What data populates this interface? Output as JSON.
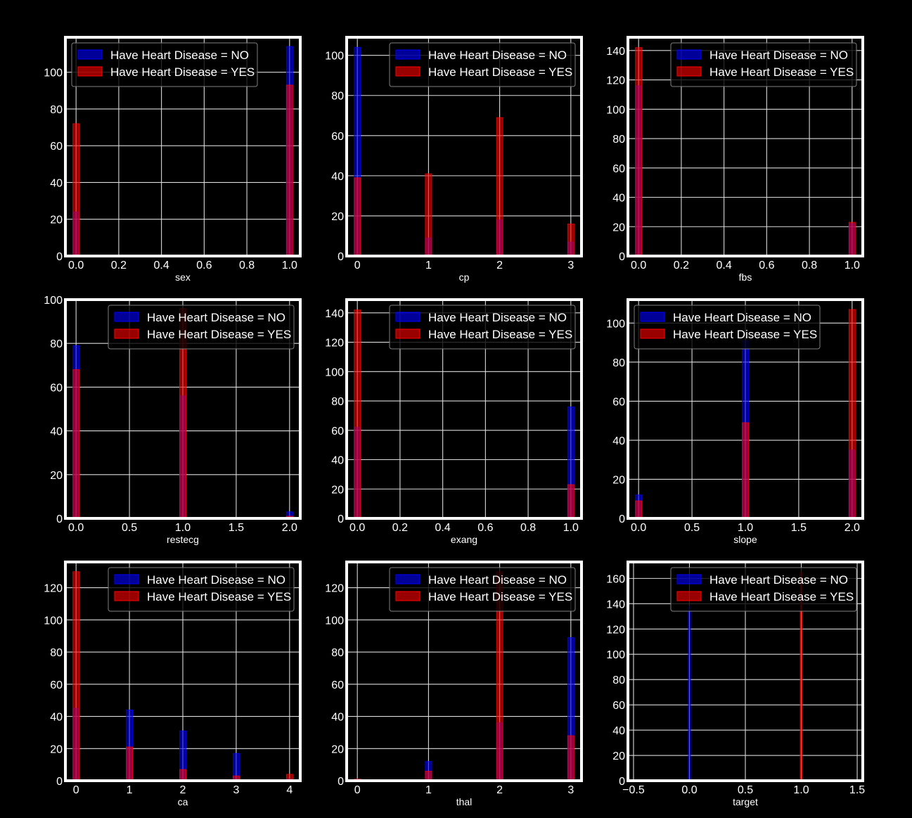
{
  "colors": {
    "background": "#000000",
    "no": "#0000ff",
    "yes": "#ff0000",
    "grid": "#d9d9d9",
    "text": "#ffffff"
  },
  "chart_data": [
    {
      "type": "bar",
      "xlabel": "sex",
      "xticks": [
        "0.0",
        "0.2",
        "0.4",
        "0.6",
        "0.8",
        "1.0"
      ],
      "xtick_values": [
        0,
        0.2,
        0.4,
        0.6,
        0.8,
        1.0
      ],
      "xlim": [
        -0.05,
        1.05
      ],
      "yticks": [
        "0",
        "20",
        "40",
        "60",
        "80",
        "100"
      ],
      "ytick_values": [
        0,
        20,
        40,
        60,
        80,
        100
      ],
      "ylim": [
        0,
        119
      ],
      "bin_width": 0.03,
      "legend_position": "upper-left",
      "series": [
        {
          "name": "Have Heart Disease = NO",
          "x": [
            0,
            1
          ],
          "values": [
            24,
            114
          ]
        },
        {
          "name": "Have Heart Disease = YES",
          "x": [
            0,
            1
          ],
          "values": [
            72,
            93
          ]
        }
      ]
    },
    {
      "type": "bar",
      "xlabel": "cp",
      "xticks": [
        "0",
        "1",
        "2",
        "3"
      ],
      "xtick_values": [
        0,
        1,
        2,
        3
      ],
      "xlim": [
        -0.15,
        3.15
      ],
      "yticks": [
        "0",
        "20",
        "40",
        "60",
        "80",
        "100"
      ],
      "ytick_values": [
        0,
        20,
        40,
        60,
        80,
        100
      ],
      "ylim": [
        0,
        109
      ],
      "bin_width": 0.09,
      "legend_position": "upper-right",
      "series": [
        {
          "name": "Have Heart Disease = NO",
          "x": [
            0,
            1,
            2,
            3
          ],
          "values": [
            104,
            9,
            18,
            7
          ]
        },
        {
          "name": "Have Heart Disease = YES",
          "x": [
            0,
            1,
            2,
            3
          ],
          "values": [
            39,
            41,
            69,
            16
          ]
        }
      ]
    },
    {
      "type": "bar",
      "xlabel": "fbs",
      "xticks": [
        "0.0",
        "0.2",
        "0.4",
        "0.6",
        "0.8",
        "1.0"
      ],
      "xtick_values": [
        0,
        0.2,
        0.4,
        0.6,
        0.8,
        1.0
      ],
      "xlim": [
        -0.05,
        1.05
      ],
      "yticks": [
        "0",
        "20",
        "40",
        "60",
        "80",
        "100",
        "120",
        "140"
      ],
      "ytick_values": [
        0,
        20,
        40,
        60,
        80,
        100,
        120,
        140
      ],
      "ylim": [
        0,
        149
      ],
      "bin_width": 0.03,
      "legend_position": "upper-right",
      "series": [
        {
          "name": "Have Heart Disease = NO",
          "x": [
            0,
            1
          ],
          "values": [
            116,
            22
          ]
        },
        {
          "name": "Have Heart Disease = YES",
          "x": [
            0,
            1
          ],
          "values": [
            142,
            23
          ]
        }
      ]
    },
    {
      "type": "bar",
      "xlabel": "restecg",
      "xticks": [
        "0.0",
        "0.5",
        "1.0",
        "1.5",
        "2.0"
      ],
      "xtick_values": [
        0,
        0.5,
        1.0,
        1.5,
        2.0
      ],
      "xlim": [
        -0.1,
        2.1
      ],
      "yticks": [
        "0",
        "20",
        "40",
        "60",
        "80",
        "100"
      ],
      "ytick_values": [
        0,
        20,
        40,
        60,
        80,
        100
      ],
      "ylim": [
        0,
        100
      ],
      "bin_width": 0.06,
      "legend_position": "upper-right",
      "series": [
        {
          "name": "Have Heart Disease = NO",
          "x": [
            0,
            1,
            2
          ],
          "values": [
            79,
            56,
            3
          ]
        },
        {
          "name": "Have Heart Disease = YES",
          "x": [
            0,
            1,
            2
          ],
          "values": [
            68,
            96,
            1
          ]
        }
      ]
    },
    {
      "type": "bar",
      "xlabel": "exang",
      "xticks": [
        "0.0",
        "0.2",
        "0.4",
        "0.6",
        "0.8",
        "1.0"
      ],
      "xtick_values": [
        0,
        0.2,
        0.4,
        0.6,
        0.8,
        1.0
      ],
      "xlim": [
        -0.05,
        1.05
      ],
      "yticks": [
        "0",
        "20",
        "40",
        "60",
        "80",
        "100",
        "120",
        "140"
      ],
      "ytick_values": [
        0,
        20,
        40,
        60,
        80,
        100,
        120,
        140
      ],
      "ylim": [
        0,
        149
      ],
      "bin_width": 0.03,
      "legend_position": "upper-right",
      "series": [
        {
          "name": "Have Heart Disease = NO",
          "x": [
            0,
            1
          ],
          "values": [
            62,
            76
          ]
        },
        {
          "name": "Have Heart Disease = YES",
          "x": [
            0,
            1
          ],
          "values": [
            142,
            23
          ]
        }
      ]
    },
    {
      "type": "bar",
      "xlabel": "slope",
      "xticks": [
        "0.0",
        "0.5",
        "1.0",
        "1.5",
        "2.0"
      ],
      "xtick_values": [
        0,
        0.5,
        1.0,
        1.5,
        2.0
      ],
      "xlim": [
        -0.1,
        2.1
      ],
      "yticks": [
        "0",
        "20",
        "40",
        "60",
        "80",
        "100"
      ],
      "ytick_values": [
        0,
        20,
        40,
        60,
        80,
        100
      ],
      "ylim": [
        0,
        112
      ],
      "bin_width": 0.06,
      "legend_position": "upper-left",
      "series": [
        {
          "name": "Have Heart Disease = NO",
          "x": [
            0,
            1,
            2
          ],
          "values": [
            12,
            91,
            35
          ]
        },
        {
          "name": "Have Heart Disease = YES",
          "x": [
            0,
            1,
            2
          ],
          "values": [
            9,
            49,
            107
          ]
        }
      ]
    },
    {
      "type": "bar",
      "xlabel": "ca",
      "xticks": [
        "0",
        "1",
        "2",
        "3",
        "4"
      ],
      "xtick_values": [
        0,
        1,
        2,
        3,
        4
      ],
      "xlim": [
        -0.2,
        4.2
      ],
      "yticks": [
        "0",
        "20",
        "40",
        "60",
        "80",
        "100",
        "120"
      ],
      "ytick_values": [
        0,
        20,
        40,
        60,
        80,
        100,
        120
      ],
      "ylim": [
        0,
        136
      ],
      "bin_width": 0.12,
      "legend_position": "upper-right",
      "series": [
        {
          "name": "Have Heart Disease = NO",
          "x": [
            0,
            1,
            2,
            3,
            4
          ],
          "values": [
            45,
            44,
            31,
            17,
            1
          ]
        },
        {
          "name": "Have Heart Disease = YES",
          "x": [
            0,
            1,
            2,
            3,
            4
          ],
          "values": [
            130,
            21,
            7,
            3,
            4
          ]
        }
      ]
    },
    {
      "type": "bar",
      "xlabel": "thal",
      "xticks": [
        "0",
        "1",
        "2",
        "3"
      ],
      "xtick_values": [
        0,
        1,
        2,
        3
      ],
      "xlim": [
        -0.15,
        3.15
      ],
      "yticks": [
        "0",
        "20",
        "40",
        "60",
        "80",
        "100",
        "120"
      ],
      "ytick_values": [
        0,
        20,
        40,
        60,
        80,
        100,
        120
      ],
      "ylim": [
        0,
        136
      ],
      "bin_width": 0.09,
      "legend_position": "upper-right",
      "series": [
        {
          "name": "Have Heart Disease = NO",
          "x": [
            0,
            1,
            2,
            3
          ],
          "values": [
            1,
            12,
            36,
            89
          ]
        },
        {
          "name": "Have Heart Disease = YES",
          "x": [
            0,
            1,
            2,
            3
          ],
          "values": [
            1,
            6,
            130,
            28
          ]
        }
      ]
    },
    {
      "type": "bar",
      "xlabel": "target",
      "xticks": [
        "−0.5",
        "0.0",
        "0.5",
        "1.0",
        "1.5"
      ],
      "xtick_values": [
        -0.5,
        0,
        0.5,
        1.0,
        1.5
      ],
      "xlim": [
        -0.55,
        1.55
      ],
      "yticks": [
        "0",
        "20",
        "40",
        "60",
        "80",
        "100",
        "120",
        "140",
        "160"
      ],
      "ytick_values": [
        0,
        20,
        40,
        60,
        80,
        100,
        120,
        140,
        160
      ],
      "ylim": [
        0,
        173
      ],
      "bin_width": 0.02,
      "legend_position": "upper-right",
      "series": [
        {
          "name": "Have Heart Disease = NO",
          "x": [
            0
          ],
          "values": [
            138
          ]
        },
        {
          "name": "Have Heart Disease = YES",
          "x": [
            1
          ],
          "values": [
            165
          ]
        }
      ]
    }
  ]
}
